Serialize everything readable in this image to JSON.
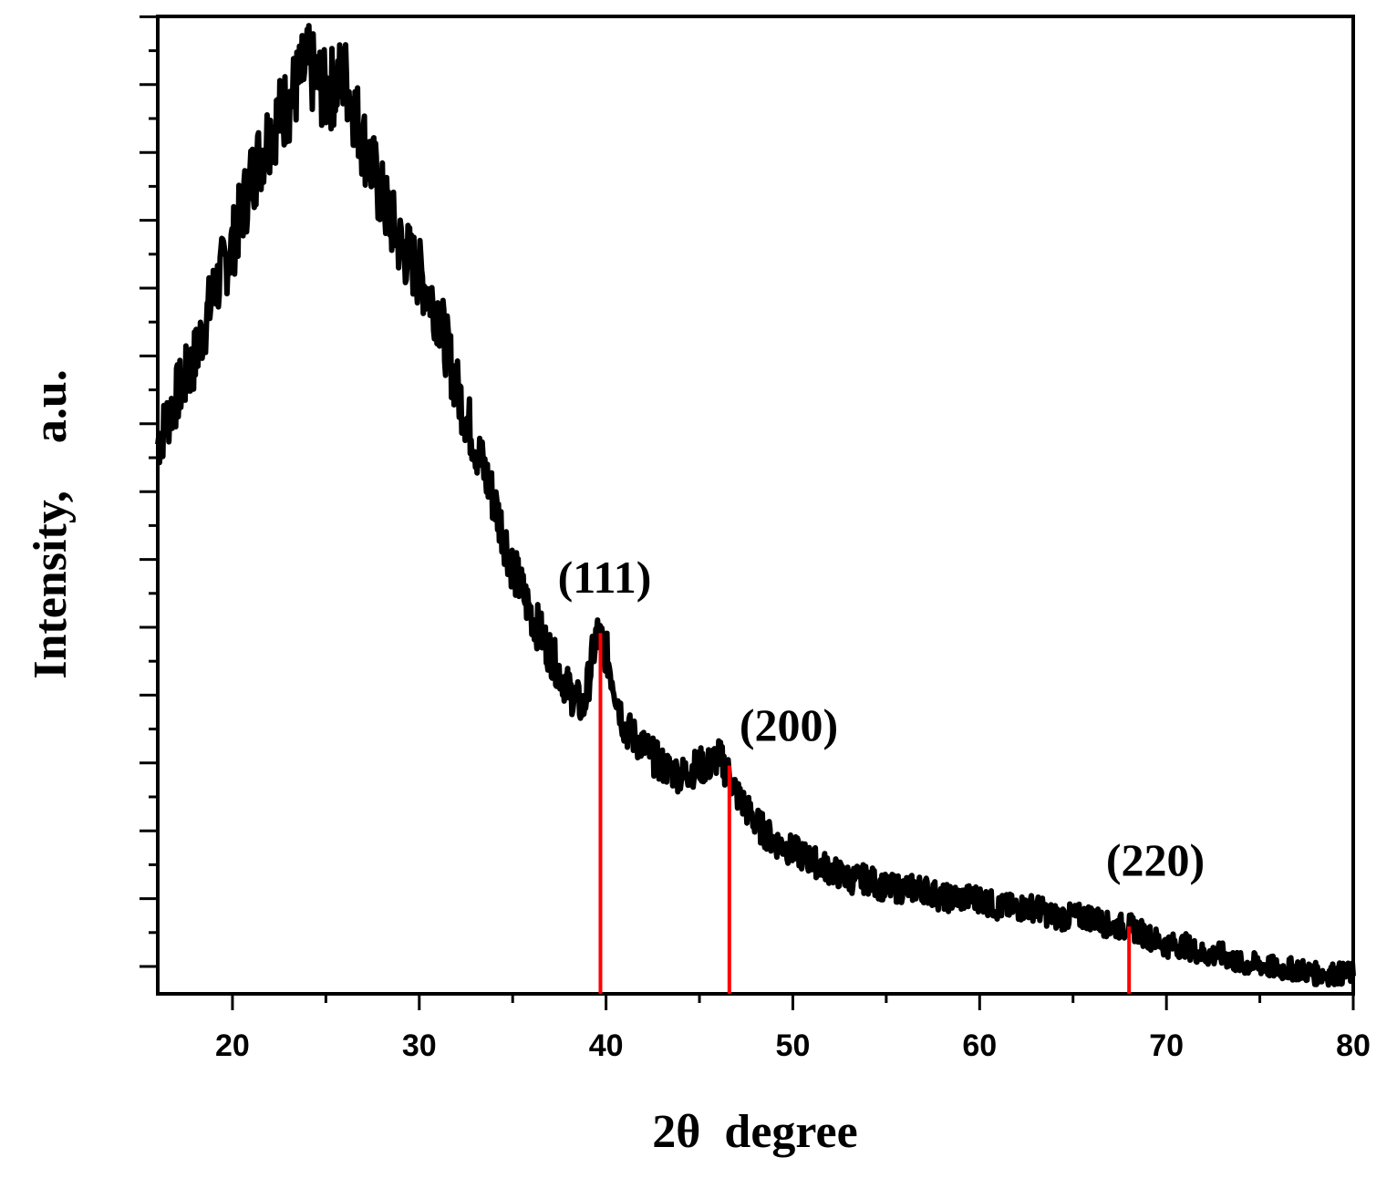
{
  "chart_data": {
    "type": "line",
    "title": "",
    "xlabel": "2θ  degree",
    "ylabel": "Intensity,    a.u.",
    "xlim": [
      16,
      80
    ],
    "ylim": [
      0,
      100
    ],
    "x_ticks": [
      20,
      30,
      40,
      50,
      60,
      70,
      80
    ],
    "y_tick_labels_shown": false,
    "grid": false,
    "colors": {
      "pattern": "#000000",
      "reference": "#ff0000"
    },
    "series": [
      {
        "x": [
          16.0,
          17.0,
          18.0,
          19.0,
          20.0,
          21.0,
          22.0,
          23.0,
          24.0,
          25.0,
          26.0,
          27.0,
          28.0,
          29.0,
          30.0,
          31.0,
          32.0,
          33.0,
          34.0,
          35.0,
          36.0,
          37.0,
          38.0,
          38.8,
          39.5,
          40.0,
          41.0,
          42.0,
          43.0,
          44.0,
          45.0,
          45.5,
          46.0,
          46.6,
          47.0,
          48.0,
          49.0,
          50.0,
          51.0,
          52.0,
          53.0,
          54.0,
          55.0,
          56.0,
          57.0,
          58.0,
          59.0,
          60.0,
          61.0,
          62.0,
          63.0,
          64.0,
          65.0,
          66.0,
          67.0,
          68.0,
          69.0,
          70.0,
          71.0,
          72.0,
          73.0,
          74.0,
          75.0,
          76.0,
          77.0,
          78.0,
          79.0,
          80.0
        ],
        "y": [
          56,
          61,
          65,
          72,
          77,
          84,
          89,
          92,
          96,
          93,
          95,
          88,
          82,
          77,
          74,
          70,
          62,
          56,
          50,
          43,
          38,
          34,
          30,
          28,
          36,
          34,
          26,
          24,
          22,
          21,
          22,
          22,
          23,
          21,
          19,
          16,
          14,
          13,
          12,
          11,
          10,
          10,
          9,
          9,
          9,
          8,
          8,
          8,
          7,
          7,
          7,
          6,
          6,
          6,
          5,
          5,
          4,
          3,
          3,
          2,
          2,
          1,
          1,
          0.5,
          0.5,
          0,
          0,
          0
        ]
      }
    ],
    "reference_lines": [
      {
        "x": 39.7,
        "label": "(111)",
        "height": 36
      },
      {
        "x": 46.6,
        "label": "(200)",
        "height": 22
      },
      {
        "x": 68.0,
        "label": "(220)",
        "height": 5
      }
    ]
  }
}
